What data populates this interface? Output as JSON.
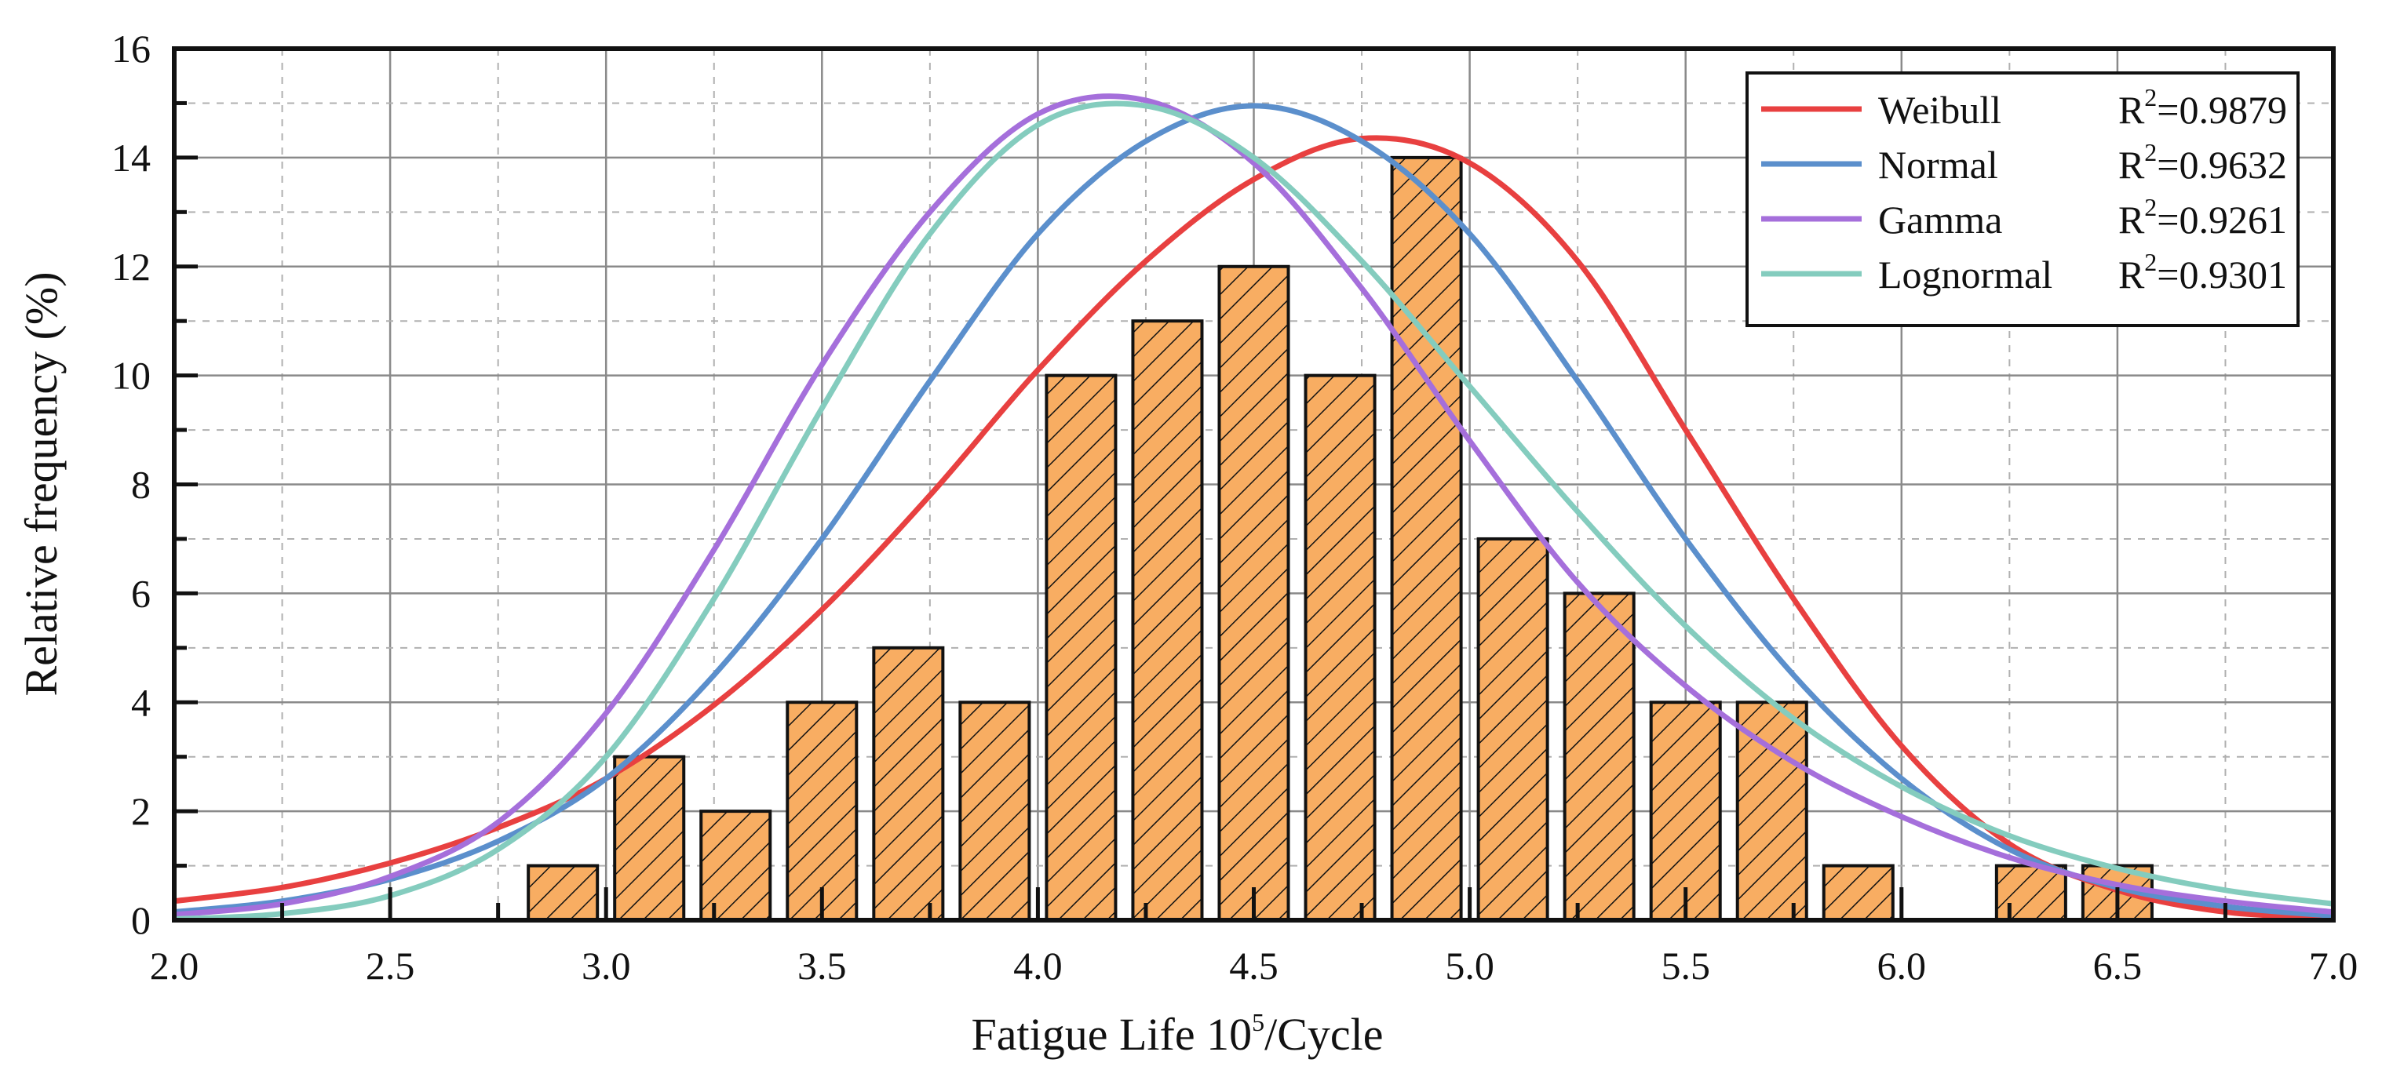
{
  "chart_data": {
    "type": "bar",
    "title": "",
    "xlabel": {
      "prefix": "Fatigue Life 10",
      "sup": "5",
      "suffix": "/Cycle"
    },
    "ylabel": "Relative frequency (%)",
    "xlim": [
      2.0,
      7.0
    ],
    "ylim": [
      0,
      16
    ],
    "xticks": [
      "2.0",
      "2.5",
      "3.0",
      "3.5",
      "4.0",
      "4.5",
      "5.0",
      "5.5",
      "6.0",
      "6.5",
      "7.0"
    ],
    "yticks": [
      "0",
      "2",
      "4",
      "6",
      "8",
      "10",
      "12",
      "14",
      "16"
    ],
    "grid": true,
    "legend_position": "top-right",
    "bar_width": 0.16,
    "bar_color": "#f8ad62",
    "bar_hatch": "diagonal",
    "bars": [
      {
        "x": 2.9,
        "value": 1
      },
      {
        "x": 3.1,
        "value": 3
      },
      {
        "x": 3.3,
        "value": 2
      },
      {
        "x": 3.5,
        "value": 4
      },
      {
        "x": 3.7,
        "value": 5
      },
      {
        "x": 3.9,
        "value": 4
      },
      {
        "x": 4.1,
        "value": 10
      },
      {
        "x": 4.3,
        "value": 11
      },
      {
        "x": 4.5,
        "value": 12
      },
      {
        "x": 4.7,
        "value": 10
      },
      {
        "x": 4.9,
        "value": 14
      },
      {
        "x": 5.1,
        "value": 7
      },
      {
        "x": 5.3,
        "value": 6
      },
      {
        "x": 5.5,
        "value": 4
      },
      {
        "x": 5.7,
        "value": 4
      },
      {
        "x": 5.9,
        "value": 1
      },
      {
        "x": 6.3,
        "value": 1
      },
      {
        "x": 6.5,
        "value": 1
      }
    ],
    "series": [
      {
        "name": "Weibull",
        "r2_label": "R",
        "r2_sup": "2",
        "r2_value": "=0.9879",
        "color": "#e84040",
        "x": [
          2.0,
          2.25,
          2.5,
          2.75,
          3.0,
          3.25,
          3.5,
          3.75,
          4.0,
          4.25,
          4.5,
          4.75,
          5.0,
          5.25,
          5.5,
          5.75,
          6.0,
          6.25,
          6.5,
          6.75,
          7.0
        ],
        "y": [
          0.35,
          0.6,
          1.05,
          1.7,
          2.6,
          3.95,
          5.7,
          7.8,
          10.1,
          12.1,
          13.6,
          14.35,
          13.9,
          12.1,
          9.0,
          5.9,
          3.2,
          1.4,
          0.55,
          0.15,
          0.05
        ]
      },
      {
        "name": "Normal",
        "r2_label": "R",
        "r2_sup": "2",
        "r2_value": "=0.9632",
        "color": "#5b8fcc",
        "x": [
          2.0,
          2.25,
          2.5,
          2.75,
          3.0,
          3.25,
          3.5,
          3.75,
          4.0,
          4.25,
          4.5,
          4.75,
          5.0,
          5.25,
          5.5,
          5.75,
          6.0,
          6.25,
          6.5,
          6.75,
          7.0
        ],
        "y": [
          0.15,
          0.35,
          0.75,
          1.45,
          2.6,
          4.5,
          7.0,
          9.9,
          12.6,
          14.3,
          14.95,
          14.3,
          12.6,
          9.9,
          7.0,
          4.5,
          2.6,
          1.3,
          0.6,
          0.25,
          0.08
        ]
      },
      {
        "name": "Gamma",
        "r2_label": "R",
        "r2_sup": "2",
        "r2_value": "=0.9261",
        "color": "#a56fdb",
        "x": [
          2.0,
          2.25,
          2.5,
          2.75,
          3.0,
          3.25,
          3.5,
          3.75,
          4.0,
          4.25,
          4.5,
          4.75,
          5.0,
          5.25,
          5.5,
          5.75,
          6.0,
          6.25,
          6.5,
          6.75,
          7.0
        ],
        "y": [
          0.1,
          0.3,
          0.8,
          1.8,
          3.8,
          6.8,
          10.2,
          13.0,
          14.8,
          15.05,
          13.9,
          11.6,
          8.8,
          6.2,
          4.3,
          2.9,
          1.9,
          1.15,
          0.65,
          0.35,
          0.15
        ]
      },
      {
        "name": "Lognormal",
        "r2_label": "R",
        "r2_sup": "2",
        "r2_value": "=0.9301",
        "color": "#84ccbe",
        "x": [
          2.0,
          2.25,
          2.5,
          2.75,
          3.0,
          3.25,
          3.5,
          3.75,
          4.0,
          4.25,
          4.5,
          4.75,
          5.0,
          5.25,
          5.5,
          5.75,
          6.0,
          6.25,
          6.5,
          6.75,
          7.0
        ],
        "y": [
          0.02,
          0.12,
          0.45,
          1.3,
          3.0,
          5.9,
          9.4,
          12.6,
          14.6,
          14.95,
          14.0,
          12.1,
          9.8,
          7.5,
          5.4,
          3.7,
          2.45,
          1.55,
          0.95,
          0.55,
          0.3
        ]
      }
    ]
  }
}
